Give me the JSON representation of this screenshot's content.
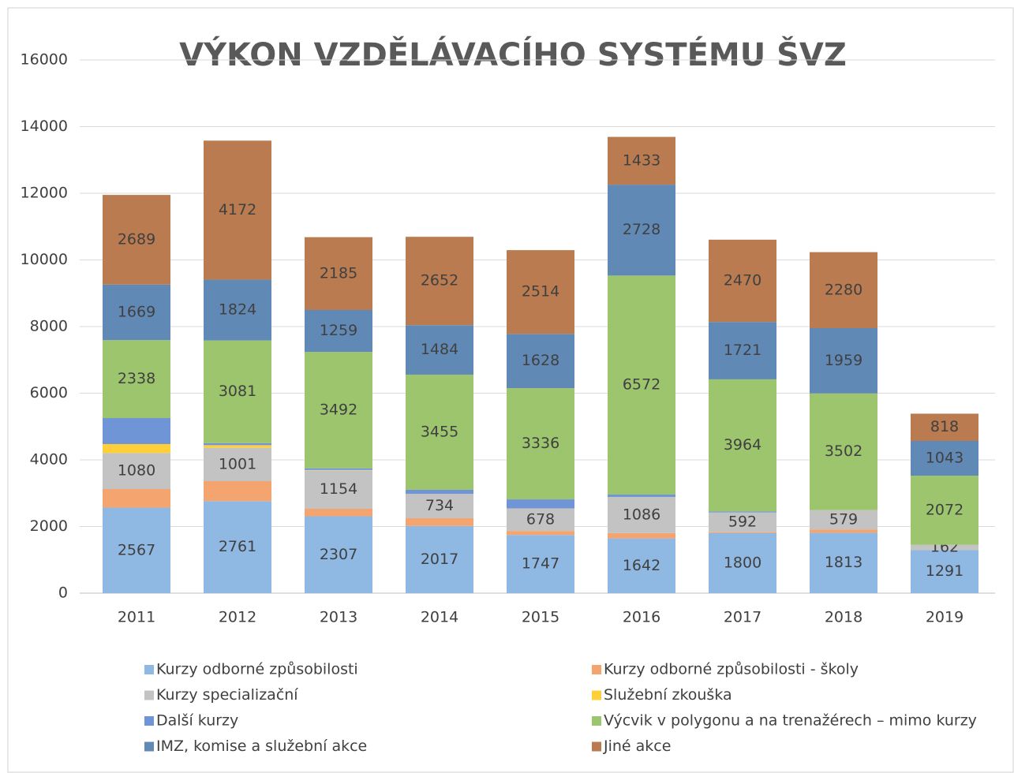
{
  "chart_data": {
    "type": "stacked_bar",
    "title": "VÝKON VZDĚLÁVACÍHO SYSTÉMU ŠVZ",
    "categories": [
      "2011",
      "2012",
      "2013",
      "2014",
      "2015",
      "2016",
      "2017",
      "2018",
      "2019"
    ],
    "ylim": [
      0,
      16000
    ],
    "yticks": [
      0,
      2000,
      4000,
      6000,
      8000,
      10000,
      12000,
      14000,
      16000
    ],
    "grid": true,
    "series": [
      {
        "name": "Kurzy odborné způsobilosti",
        "color": "#8fb9e3",
        "labels": true,
        "values": [
          2567,
          2761,
          2307,
          2017,
          1747,
          1642,
          1800,
          1813,
          1291
        ]
      },
      {
        "name": "Kurzy odborné způsobilosti -  školy",
        "color": "#f4a46f",
        "labels": false,
        "values": [
          557,
          600,
          225,
          231,
          120,
          160,
          30,
          100,
          0
        ]
      },
      {
        "name": "Kurzy specializační",
        "color": "#c3c3c3",
        "labels": true,
        "values": [
          1080,
          1001,
          1154,
          734,
          678,
          1086,
          592,
          579,
          162
        ]
      },
      {
        "name": "Služební zkouška",
        "color": "#ffcf3a",
        "labels": false,
        "values": [
          270,
          80,
          10,
          0,
          0,
          0,
          0,
          0,
          0
        ]
      },
      {
        "name": "Další kurzy",
        "color": "#7095d6",
        "labels": false,
        "values": [
          780,
          60,
          50,
          120,
          270,
          70,
          30,
          0,
          0
        ]
      },
      {
        "name": "Výcvik v polygonu a na trenažérech – mimo kurzy",
        "color": "#9cc56e",
        "labels": true,
        "values": [
          2338,
          3081,
          3492,
          3455,
          3336,
          6572,
          3964,
          3502,
          2072
        ]
      },
      {
        "name": "IMZ, komise a služební akce",
        "color": "#6189b6",
        "labels": true,
        "values": [
          1669,
          1824,
          1259,
          1484,
          1628,
          2728,
          1721,
          1959,
          1043
        ]
      },
      {
        "name": "Jiné akce",
        "color": "#b97b4f",
        "labels": true,
        "values": [
          2689,
          4172,
          2185,
          2652,
          2514,
          1433,
          2470,
          2280,
          818
        ]
      }
    ]
  }
}
